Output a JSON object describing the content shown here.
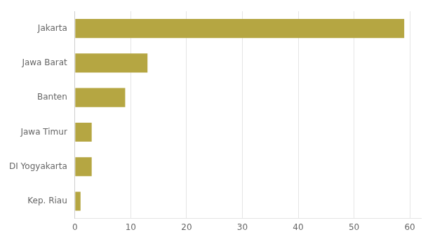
{
  "chart_data": {
    "type": "bar",
    "orientation": "horizontal",
    "categories": [
      "Kep. Riau",
      "DI Yogyakarta",
      "Jawa Timur",
      "Banten",
      "Jawa Barat",
      "Jakarta"
    ],
    "values": [
      1,
      3,
      3,
      9,
      13,
      59
    ],
    "color": "#b5a642",
    "xlim": [
      0,
      62
    ],
    "xticks": [
      0,
      10,
      20,
      30,
      40,
      50,
      60
    ],
    "grid": true
  }
}
